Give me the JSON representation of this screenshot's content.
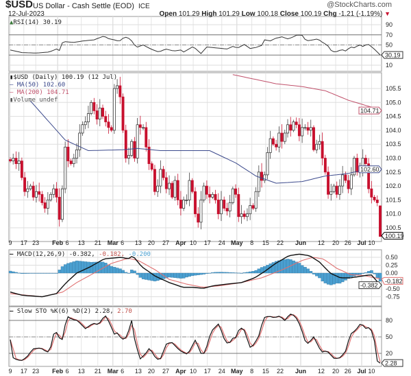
{
  "header": {
    "symbol": "$USD",
    "name": "US Dollar - Cash Settle (EOD)",
    "exchange": "ICE",
    "brand": "@StockCharts.com",
    "date": "12-Jul-2023",
    "open_label": "Open",
    "open": "101.29",
    "high_label": "High",
    "high": "101.29",
    "low_label": "Low",
    "low": "100.18",
    "close_label": "Close",
    "close": "100.19",
    "chg_label": "Chg",
    "chg": "-1.21 (-1.19%)",
    "chg_arrow": "▼"
  },
  "colors": {
    "down": "#c8102e",
    "up": "#222222",
    "ma50": "#3c4a8c",
    "ma200": "#c0506a",
    "hist": "#4a9fd0",
    "signal": "#e07070",
    "grid": "#dddddd"
  },
  "legends": {
    "rsi": "RSI(14) 30.19",
    "price": "$USD (Daily) 100.19 (12 Jul)",
    "ma50": "MA(50) 102.60",
    "ma200": "MA(200) 104.71",
    "volume": "Volume undef",
    "macd_main": "MACD(12,26,9) -0.382,",
    "macd_signal": "-0.182,",
    "macd_hist": "-0.200",
    "sto_main": "Slow STO %K(6) %D(2) 2.28,",
    "sto_d": "2.70"
  },
  "chart_data": {
    "type": "candlestick",
    "x_ticks": [
      {
        "label": "9",
        "i": 0,
        "bold": false
      },
      {
        "label": "17",
        "i": 4.7,
        "bold": false
      },
      {
        "label": "23",
        "i": 8.8,
        "bold": false
      },
      {
        "label": "Feb",
        "i": 16.4,
        "bold": true
      },
      {
        "label": "6",
        "i": 19.7,
        "bold": false
      },
      {
        "label": "13",
        "i": 24.6,
        "bold": false
      },
      {
        "label": "21",
        "i": 30.3,
        "bold": false
      },
      {
        "label": "Mar",
        "i": 35.5,
        "bold": true
      },
      {
        "label": "6",
        "i": 38.8,
        "bold": false
      },
      {
        "label": "13",
        "i": 44.3,
        "bold": false
      },
      {
        "label": "20",
        "i": 48.8,
        "bold": false
      },
      {
        "label": "27",
        "i": 53.8,
        "bold": false
      },
      {
        "label": "Apr",
        "i": 59,
        "bold": true
      },
      {
        "label": "10",
        "i": 63.3,
        "bold": false
      },
      {
        "label": "17",
        "i": 68.2,
        "bold": false
      },
      {
        "label": "24",
        "i": 73.2,
        "bold": false
      },
      {
        "label": "May",
        "i": 78.4,
        "bold": true
      },
      {
        "label": "8",
        "i": 83.6,
        "bold": false
      },
      {
        "label": "15",
        "i": 88.4,
        "bold": false
      },
      {
        "label": "22",
        "i": 93.4,
        "bold": false
      },
      {
        "label": "Jun",
        "i": 100.5,
        "bold": true
      },
      {
        "label": "12",
        "i": 107.6,
        "bold": false
      },
      {
        "label": "20",
        "i": 112.6,
        "bold": false
      },
      {
        "label": "26",
        "i": 116.8,
        "bold": false
      },
      {
        "label": "Jul",
        "i": 121.6,
        "bold": true
      },
      {
        "label": "10",
        "i": 125,
        "bold": false
      }
    ],
    "price": {
      "y_ticks": [
        "105.5",
        "105.0",
        "104.5",
        "104.0",
        "103.5",
        "103.0",
        "102.5",
        "102.0",
        "101.5",
        "101.0",
        "100.5"
      ],
      "closes": [
        102.9,
        103.0,
        102.8,
        102.9,
        102.3,
        101.8,
        101.9,
        102.0,
        101.6,
        101.8,
        101.7,
        101.4,
        101.2,
        101.5,
        101.7,
        101.9,
        101.6,
        100.8,
        101.9,
        103.4,
        102.9,
        102.8,
        103.0,
        103.3,
        103.9,
        104.2,
        104.3,
        104.6,
        105.0,
        104.7,
        104.4,
        104.8,
        104.5,
        104.3,
        104.1,
        104.0,
        105.5,
        105.6,
        105.2,
        104.0,
        103.0,
        103.1,
        103.6,
        103.0,
        104.2,
        104.1,
        104.1,
        103.4,
        102.8,
        102.6,
        101.8,
        102.0,
        102.6,
        102.3,
        101.9,
        102.1,
        101.6,
        102.2,
        101.5,
        101.2,
        101.5,
        101.5,
        102.2,
        101.8,
        101.0,
        100.7,
        101.5,
        102.0,
        101.7,
        101.6,
        101.7,
        101.5,
        101.0,
        101.5,
        101.2,
        101.1,
        101.4,
        101.9,
        101.7,
        100.9,
        101.0,
        100.9,
        101.0,
        101.3,
        101.2,
        101.8,
        102.5,
        102.2,
        102.4,
        103.2,
        103.7,
        103.5,
        103.4,
        103.9,
        103.6,
        103.9,
        104.2,
        104.0,
        104.3,
        104.2,
        103.8,
        104.1,
        104.1,
        104.0,
        104.1,
        103.3,
        103.5,
        103.6,
        103.0,
        102.5,
        101.7,
        101.8,
        102.0,
        101.7,
        102.0,
        102.4,
        102.2,
        101.9,
        102.4,
        103.0,
        102.5,
        102.6,
        103.0,
        102.8,
        101.9,
        101.6,
        101.5,
        101.4,
        100.19
      ],
      "last": {
        "open": 101.29,
        "high": 101.29,
        "low": 100.18,
        "close": 100.19
      },
      "ma50": [
        [
          7,
          105.05
        ],
        [
          19,
          103.65
        ],
        [
          27,
          103.27
        ],
        [
          39,
          103.3
        ],
        [
          44,
          103.35
        ],
        [
          52,
          103.27
        ],
        [
          64,
          103.27
        ],
        [
          69,
          103.27
        ],
        [
          78,
          102.83
        ],
        [
          85,
          102.36
        ],
        [
          92,
          102.1
        ],
        [
          101,
          102.16
        ],
        [
          109,
          102.36
        ],
        [
          117,
          102.45
        ],
        [
          125,
          102.65
        ],
        [
          128,
          102.6
        ]
      ],
      "ma200": [
        [
          77,
          106.0
        ],
        [
          92,
          105.67
        ],
        [
          101,
          105.57
        ],
        [
          109,
          105.42
        ],
        [
          117,
          105.08
        ],
        [
          125,
          104.83
        ],
        [
          128,
          104.71
        ]
      ],
      "tags": {
        "close": "100.19",
        "ma50": "102.60",
        "ma200": "104.71"
      }
    },
    "rsi": {
      "y_ticks": [
        "90",
        "70",
        "50",
        "10"
      ],
      "tag": "30.19",
      "points": [
        [
          0,
          40
        ],
        [
          4,
          35
        ],
        [
          9,
          34
        ],
        [
          13.5,
          36
        ],
        [
          16,
          42
        ],
        [
          16.6,
          33
        ],
        [
          18.2,
          57
        ],
        [
          21.8,
          55
        ],
        [
          25.4,
          58
        ],
        [
          29,
          60
        ],
        [
          32.5,
          68
        ],
        [
          33.6,
          63
        ],
        [
          36,
          60
        ],
        [
          37.7,
          57
        ],
        [
          39.6,
          66
        ],
        [
          41.5,
          62
        ],
        [
          43.6,
          45
        ],
        [
          46,
          50
        ],
        [
          48.6,
          42
        ],
        [
          51.4,
          36
        ],
        [
          53.8,
          42
        ],
        [
          56.6,
          38
        ],
        [
          59,
          40
        ],
        [
          59.7,
          35
        ],
        [
          63.3,
          47
        ],
        [
          66,
          33
        ],
        [
          68,
          46
        ],
        [
          71.6,
          44
        ],
        [
          75,
          42
        ],
        [
          77,
          47
        ],
        [
          78.7,
          44
        ],
        [
          81,
          51
        ],
        [
          83,
          43
        ],
        [
          85,
          45
        ],
        [
          87,
          49
        ],
        [
          88,
          60
        ],
        [
          90,
          58
        ],
        [
          91.7,
          63
        ],
        [
          94,
          66
        ],
        [
          96,
          62
        ],
        [
          97.6,
          65
        ],
        [
          99.3,
          70
        ],
        [
          101,
          69
        ],
        [
          102.4,
          58
        ],
        [
          104.7,
          60
        ],
        [
          106.4,
          62
        ],
        [
          108.3,
          54
        ],
        [
          109.7,
          50
        ],
        [
          111.4,
          36
        ],
        [
          113,
          37
        ],
        [
          114.7,
          41
        ],
        [
          116,
          38
        ],
        [
          117.8,
          46
        ],
        [
          119.4,
          44
        ],
        [
          120.6,
          51
        ],
        [
          122,
          47
        ],
        [
          123.7,
          52
        ],
        [
          124.9,
          47
        ],
        [
          126.3,
          40
        ],
        [
          128,
          30.19
        ]
      ]
    },
    "macd": {
      "y_ticks": [
        "0.50",
        "0.25",
        "0.00",
        "-0.50",
        "-0.75"
      ],
      "tags": {
        "signal": "-0.182",
        "macd": "-0.382"
      },
      "macd": [
        [
          0,
          -0.6
        ],
        [
          4,
          -0.7
        ],
        [
          11,
          -0.75
        ],
        [
          16,
          -0.65
        ],
        [
          19.4,
          -0.3
        ],
        [
          23,
          0
        ],
        [
          27.7,
          0.2
        ],
        [
          32.5,
          0.45
        ],
        [
          38.4,
          0.5
        ],
        [
          40.8,
          0.45
        ],
        [
          42.4,
          0.55
        ],
        [
          45.5,
          0.2
        ],
        [
          50.2,
          -0.1
        ],
        [
          55,
          -0.3
        ],
        [
          59.7,
          -0.45
        ],
        [
          63.3,
          -0.45
        ],
        [
          66.8,
          -0.48
        ],
        [
          70.4,
          -0.4
        ],
        [
          75,
          -0.35
        ],
        [
          80,
          -0.3
        ],
        [
          84.6,
          -0.15
        ],
        [
          88,
          0.05
        ],
        [
          91.7,
          0.3
        ],
        [
          96.4,
          0.55
        ],
        [
          100,
          0.6
        ],
        [
          103.6,
          0.55
        ],
        [
          107,
          0.35
        ],
        [
          110.7,
          0.0
        ],
        [
          114.2,
          -0.15
        ],
        [
          117.8,
          -0.15
        ],
        [
          121.3,
          -0.1
        ],
        [
          124.9,
          -0.05
        ],
        [
          126.3,
          -0.2
        ],
        [
          128,
          -0.382
        ]
      ],
      "signal": [
        [
          0,
          -0.65
        ],
        [
          11,
          -0.75
        ],
        [
          18.2,
          -0.6
        ],
        [
          23,
          -0.3
        ],
        [
          30,
          0.05
        ],
        [
          34.8,
          0.3
        ],
        [
          40.8,
          0.47
        ],
        [
          44.3,
          0.4
        ],
        [
          50.2,
          0.1
        ],
        [
          55,
          -0.2
        ],
        [
          61,
          -0.35
        ],
        [
          66.8,
          -0.45
        ],
        [
          72.7,
          -0.4
        ],
        [
          80,
          -0.3
        ],
        [
          87,
          -0.15
        ],
        [
          94,
          0.1
        ],
        [
          101,
          0.4
        ],
        [
          104.7,
          0.5
        ],
        [
          108.3,
          0.45
        ],
        [
          113,
          0.15
        ],
        [
          117.8,
          -0.05
        ],
        [
          122.5,
          -0.08
        ],
        [
          128,
          -0.182
        ]
      ]
    },
    "sto": {
      "y_ticks": [
        "80",
        "50",
        "20"
      ],
      "tag": "2.28",
      "k": [
        [
          0,
          45
        ],
        [
          1,
          12
        ],
        [
          2.4,
          8
        ],
        [
          4.2,
          7
        ],
        [
          6,
          15
        ],
        [
          7.8,
          28
        ],
        [
          10.5,
          30
        ],
        [
          12.8,
          22
        ],
        [
          13.7,
          25
        ],
        [
          15,
          55
        ],
        [
          16,
          58
        ],
        [
          17.8,
          40
        ],
        [
          19.6,
          88
        ],
        [
          21.4,
          82
        ],
        [
          23.2,
          80
        ],
        [
          26,
          65
        ],
        [
          28.7,
          75
        ],
        [
          30.5,
          72
        ],
        [
          32.8,
          90
        ],
        [
          34.1,
          78
        ],
        [
          36,
          55
        ],
        [
          36.9,
          58
        ],
        [
          38.7,
          45
        ],
        [
          40.5,
          50
        ],
        [
          41.9,
          83
        ],
        [
          43.2,
          40
        ],
        [
          45,
          10
        ],
        [
          46.9,
          20
        ],
        [
          48.2,
          30
        ],
        [
          50.5,
          10
        ],
        [
          51.8,
          8
        ],
        [
          54.1,
          38
        ],
        [
          55.9,
          40
        ],
        [
          58.7,
          25
        ],
        [
          61.4,
          18
        ],
        [
          64.1,
          45
        ],
        [
          65.9,
          20
        ],
        [
          67.3,
          20
        ],
        [
          69.5,
          60
        ],
        [
          72.3,
          75
        ],
        [
          73.6,
          50
        ],
        [
          75.5,
          35
        ],
        [
          76.8,
          48
        ],
        [
          77.7,
          45
        ],
        [
          79.5,
          68
        ],
        [
          81.4,
          60
        ],
        [
          82.7,
          30
        ],
        [
          84.1,
          35
        ],
        [
          85.9,
          50
        ],
        [
          87.7,
          85
        ],
        [
          89.5,
          88
        ],
        [
          91.3,
          85
        ],
        [
          93.2,
          88
        ],
        [
          95,
          80
        ],
        [
          96.8,
          92
        ],
        [
          98.6,
          88
        ],
        [
          100.4,
          70
        ],
        [
          102.2,
          40
        ],
        [
          103.1,
          38
        ],
        [
          105,
          50
        ],
        [
          107.7,
          22
        ],
        [
          109.5,
          25
        ],
        [
          112.2,
          10
        ],
        [
          114,
          12
        ],
        [
          115.9,
          22
        ],
        [
          117.7,
          55
        ],
        [
          119.5,
          62
        ],
        [
          121.3,
          75
        ],
        [
          123.1,
          65
        ],
        [
          124.5,
          68
        ],
        [
          125.8,
          50
        ],
        [
          127,
          6
        ],
        [
          128,
          2.28
        ]
      ]
    }
  }
}
